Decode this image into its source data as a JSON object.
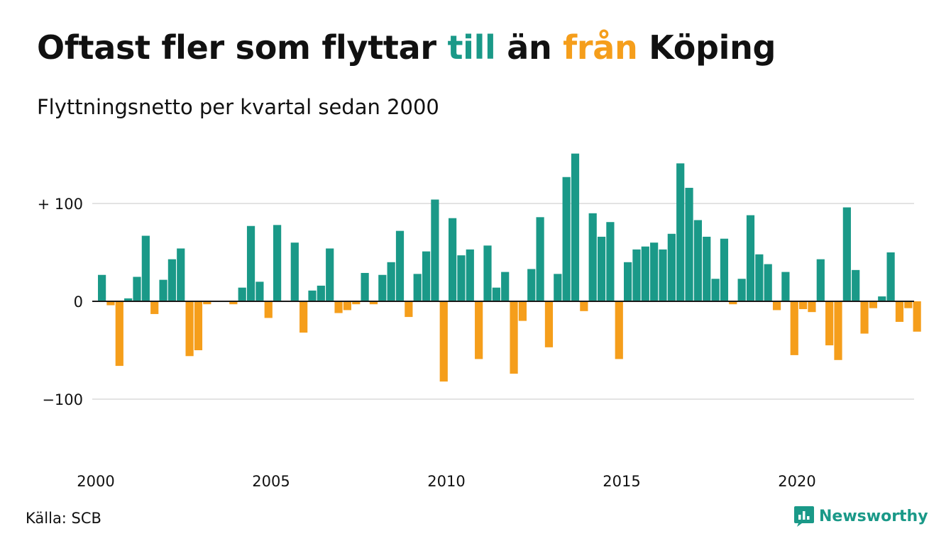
{
  "title": {
    "prefix": "Oftast fler som flyttar ",
    "word_in": "till",
    "middle": " än ",
    "word_out": "från",
    "suffix": " Köping"
  },
  "subtitle": "Flyttningsnetto per kvartal sedan 2000",
  "source": "Källa: SCB",
  "brand": {
    "name": "Newsworthy",
    "icon": "newsworthy-logo-icon"
  },
  "colors": {
    "positive": "#1a9988",
    "negative": "#f59e1b",
    "grid": "#e3e3e3",
    "zero": "#1a1a1a",
    "text": "#111111",
    "brand": "#1a9988"
  },
  "chart_data": {
    "type": "bar",
    "x_start": 2000,
    "x_period": "quarter",
    "x_ticks": [
      2000,
      2005,
      2010,
      2015,
      2020
    ],
    "y_ticks": [
      {
        "value": 100,
        "label": "+ 100"
      },
      {
        "value": 0,
        "label": "0"
      },
      {
        "value": -100,
        "label": "−100"
      }
    ],
    "ylim": [
      -165,
      160
    ],
    "grid": true,
    "values": [
      27,
      -4,
      -66,
      3,
      25,
      67,
      -13,
      22,
      43,
      54,
      -56,
      -50,
      -3,
      0,
      0,
      -3,
      14,
      77,
      20,
      -17,
      78,
      0,
      60,
      -32,
      11,
      16,
      54,
      -12,
      -9,
      -3,
      29,
      -3,
      27,
      40,
      72,
      -16,
      28,
      51,
      104,
      -82,
      85,
      47,
      53,
      -59,
      57,
      14,
      30,
      -74,
      -20,
      33,
      86,
      -47,
      28,
      127,
      151,
      -10,
      90,
      66,
      81,
      -59,
      40,
      53,
      56,
      60,
      53,
      69,
      141,
      116,
      83,
      66,
      23,
      64,
      -3,
      23,
      88,
      48,
      38,
      -9,
      30,
      -55,
      -8,
      -11,
      43,
      -45,
      -60,
      96,
      32,
      -33,
      -7,
      5,
      50,
      -21,
      -7,
      -31
    ]
  }
}
